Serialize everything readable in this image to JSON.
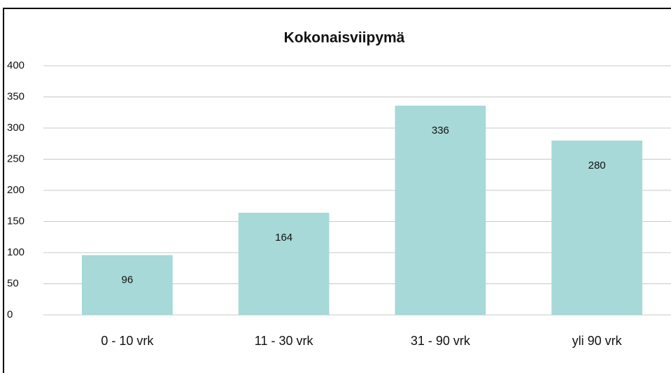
{
  "chart_data": {
    "type": "bar",
    "title": "Kokonaisviipymä",
    "categories": [
      "0 - 10 vrk",
      "11 - 30 vrk",
      "31 - 90 vrk",
      "yli 90 vrk"
    ],
    "values": [
      96,
      164,
      336,
      280
    ],
    "color": "#a6d9d7",
    "ylim": [
      0,
      400
    ],
    "yticks": [
      0,
      50,
      100,
      150,
      200,
      250,
      300,
      350,
      400
    ],
    "grid": true
  }
}
